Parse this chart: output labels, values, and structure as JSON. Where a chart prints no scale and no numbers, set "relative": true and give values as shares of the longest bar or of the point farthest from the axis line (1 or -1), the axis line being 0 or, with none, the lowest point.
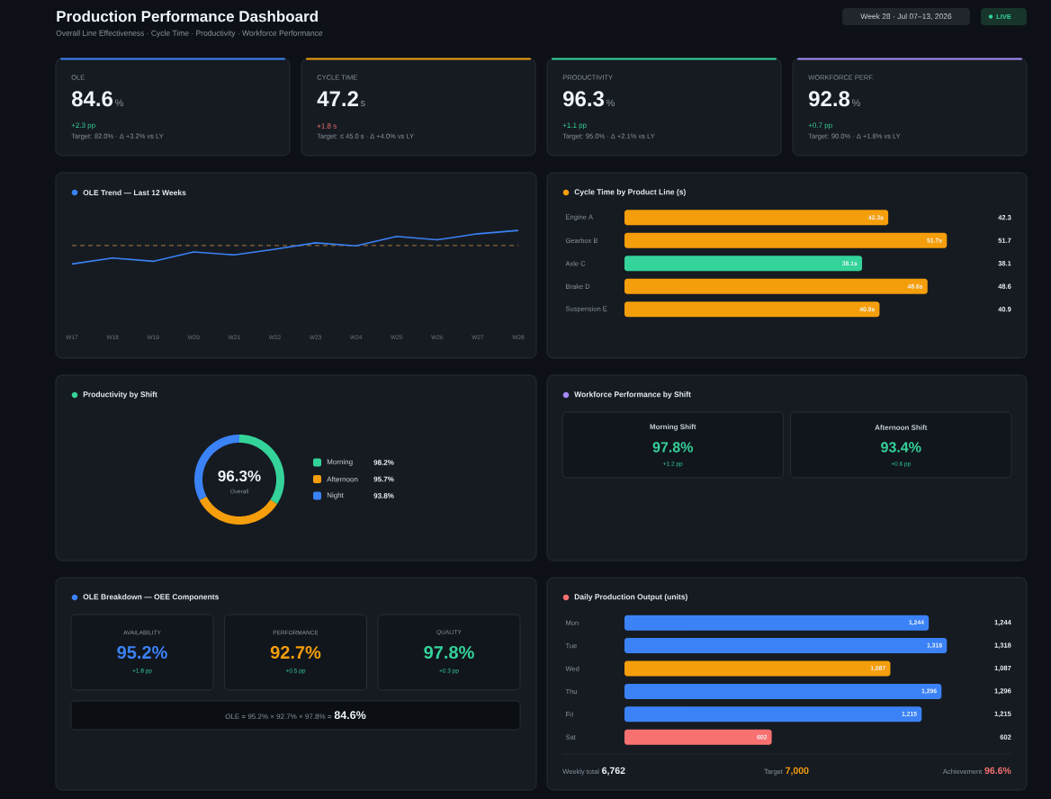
{
  "chart_data": [
    {
      "type": "other",
      "title": "Production Performance Dashboard",
      "subtitle": "Overall Line Effectiveness · Cycle Time · Productivity · Workforce Performance",
      "annotations": [
        "Week 28 · Jul 07–13, 2026",
        "LIVE"
      ]
    },
    {
      "type": "other",
      "title": "OLE",
      "annotations": [
        "84.6",
        "%",
        "+2.3 pp",
        "Target: 82.0% · Δ +3.2% vs LY"
      ]
    },
    {
      "type": "other",
      "title": "CYCLE TIME",
      "annotations": [
        "47.2",
        "s",
        "+1.8 s",
        "Target: ≤ 45.0 s · Δ +4.0% vs LY"
      ]
    },
    {
      "type": "other",
      "title": "PRODUCTIVITY",
      "annotations": [
        "96.3",
        "%",
        "+1.1 pp",
        "Target: 95.0% · Δ +2.1% vs LY"
      ]
    },
    {
      "type": "other",
      "title": "WORKFORCE PERF.",
      "annotations": [
        "92.8",
        "%",
        "+0.7 pp",
        "Target: 90.0% · Δ +1.8% vs LY"
      ]
    },
    {
      "type": "line",
      "title": "OLE Trend — Last 12 Weeks",
      "categories": [
        "W17",
        "W18",
        "W19",
        "W20",
        "W21",
        "W22",
        "W23",
        "W24",
        "W25",
        "W26",
        "W27",
        "W28"
      ],
      "relative": true,
      "series": [
        {
          "color": "#3b82f6",
          "values": [
            0,
            0.18,
            0.08,
            0.36,
            0.27,
            0.44,
            0.63,
            0.54,
            0.82,
            0.72,
            0.9,
            1
          ]
        }
      ],
      "ref_lines": [
        {
          "axis": "y",
          "value": 0.55,
          "color": "#b8863b",
          "line_style": "dashed"
        }
      ]
    },
    {
      "type": "bar",
      "orientation": "horizontal",
      "title": "Cycle Time by Product Line (s)",
      "categories": [
        "Engine A",
        "Gearbox B",
        "Axle C",
        "Brake D",
        "Suspension E"
      ],
      "values": [
        42.3,
        51.7,
        38.1,
        48.6,
        40.9
      ],
      "colors": [
        "#f59e0b",
        "#f59e0b",
        "#34d399",
        "#f59e0b",
        "#f59e0b"
      ],
      "value_labels": [
        "42.3",
        "51.7",
        "38.1",
        "48.6",
        "40.9"
      ],
      "annotations": [
        {
          "text": "42.3s",
          "x": 42.3,
          "y": "Engine A"
        },
        {
          "text": "51.7s",
          "x": 51.7,
          "y": "Gearbox B"
        },
        {
          "text": "38.1s",
          "x": 38.1,
          "y": "Axle C"
        },
        {
          "text": "48.6s",
          "x": 48.6,
          "y": "Brake D"
        },
        {
          "text": "40.9s",
          "x": 40.9,
          "y": "Suspension E"
        }
      ]
    },
    {
      "type": "donut",
      "title": "Productivity by Shift",
      "categories": [
        "Morning",
        "Afternoon",
        "Night"
      ],
      "values": [
        98.2,
        95.7,
        93.8
      ],
      "colors": [
        "#34d399",
        "#f59e0b",
        "#3b82f6"
      ],
      "value_labels": [
        "98.2%",
        "95.7%",
        "93.8%"
      ],
      "legend": "right",
      "annotations": [
        "96.3%",
        "Overall"
      ]
    },
    {
      "type": "other",
      "title": "Workforce Performance by Shift",
      "annotations": [
        "Morning Shift",
        "97.8%",
        "+1.2 pp",
        "Afternoon Shift",
        "93.4%",
        "+0.6 pp"
      ]
    },
    {
      "type": "other",
      "title": "OLE Breakdown — OEE Components",
      "annotations": [
        "AVAILABILITY",
        "95.2%",
        "+1.8 pp",
        "PERFORMANCE",
        "92.7%",
        "+0.5 pp",
        "QUALITY",
        "97.8%",
        "+0.3 pp",
        "OLE = 95.2% × 92.7% × 97.8% =",
        "84.6%"
      ]
    },
    {
      "type": "bar",
      "orientation": "horizontal",
      "title": "Daily Production Output (units)",
      "categories": [
        "Mon",
        "Tue",
        "Wed",
        "Thu",
        "Fri",
        "Sat"
      ],
      "values": [
        1244,
        1318,
        1087,
        1296,
        1215,
        602
      ],
      "colors": [
        "#3b82f6",
        "#3b82f6",
        "#f59e0b",
        "#3b82f6",
        "#3b82f6",
        "#f87171"
      ],
      "value_labels": [
        "1,244",
        "1,318",
        "1,087",
        "1,296",
        "1,215",
        "602"
      ],
      "annotations": [
        "Weekly total",
        "6,762",
        "Target",
        "7,000",
        "Achievement",
        "96.6%"
      ]
    }
  ]
}
